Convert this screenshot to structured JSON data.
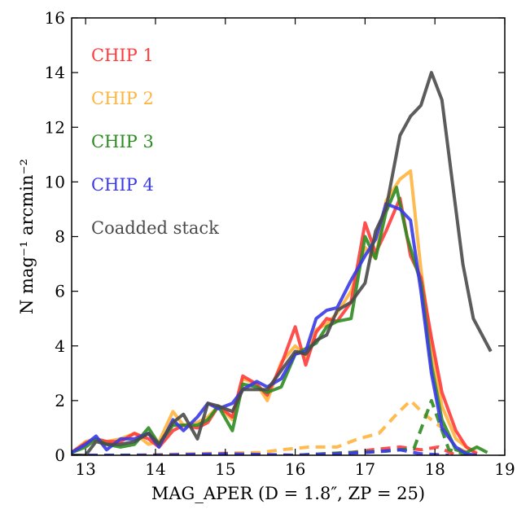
{
  "chart_data": {
    "type": "line",
    "xlabel": "MAG_APER (D = 1.8″, ZP = 25)",
    "ylabel": "N mag⁻¹ arcmin⁻²",
    "xlim": [
      12.8,
      19.0
    ],
    "ylim": [
      0,
      16
    ],
    "xticks": [
      "13",
      "14",
      "15",
      "16",
      "17",
      "18",
      "19"
    ],
    "yticks": [
      "0",
      "2",
      "4",
      "6",
      "8",
      "10",
      "12",
      "14",
      "16"
    ],
    "grid": false,
    "legend_position": "top-left",
    "series": [
      {
        "name": "CHIP 1",
        "color": "#ff3b3b",
        "style": "solid",
        "x": [
          12.8,
          13.0,
          13.15,
          13.3,
          13.5,
          13.7,
          13.9,
          14.05,
          14.25,
          14.4,
          14.6,
          14.75,
          14.9,
          15.1,
          15.25,
          15.45,
          15.6,
          15.8,
          16.0,
          16.15,
          16.3,
          16.45,
          16.6,
          16.8,
          17.0,
          17.15,
          17.3,
          17.5,
          17.65,
          17.8,
          17.95,
          18.1,
          18.3,
          18.45,
          18.6
        ],
        "y": [
          0.1,
          0.45,
          0.6,
          0.5,
          0.5,
          0.8,
          0.6,
          0.3,
          0.9,
          1.1,
          1.0,
          1.2,
          1.8,
          1.4,
          2.9,
          2.6,
          2.2,
          3.3,
          4.7,
          3.3,
          4.5,
          5.0,
          4.9,
          5.6,
          8.5,
          7.4,
          8.2,
          9.4,
          7.3,
          6.5,
          4.3,
          2.3,
          0.9,
          0.3,
          0.05
        ]
      },
      {
        "name": "CHIP 2",
        "color": "#ffb43c",
        "style": "solid",
        "x": [
          12.8,
          13.0,
          13.15,
          13.3,
          13.5,
          13.7,
          13.9,
          14.05,
          14.25,
          14.4,
          14.6,
          14.75,
          14.9,
          15.1,
          15.25,
          15.45,
          15.6,
          15.8,
          16.0,
          16.15,
          16.3,
          16.45,
          16.6,
          16.8,
          17.0,
          17.15,
          17.3,
          17.5,
          17.65,
          17.8,
          17.95,
          18.1,
          18.3,
          18.45,
          18.6
        ],
        "y": [
          0.1,
          0.5,
          0.6,
          0.5,
          0.6,
          0.8,
          0.4,
          0.5,
          1.6,
          1.1,
          1.2,
          1.4,
          1.8,
          1.3,
          2.8,
          2.6,
          2.0,
          3.4,
          4.0,
          3.6,
          4.6,
          4.8,
          5.2,
          6.0,
          7.6,
          7.2,
          9.3,
          10.1,
          10.4,
          6.8,
          4.0,
          1.8,
          0.6,
          0.3,
          0.1
        ]
      },
      {
        "name": "CHIP 3",
        "color": "#2e8b22",
        "style": "solid",
        "x": [
          12.8,
          13.0,
          13.15,
          13.3,
          13.5,
          13.7,
          13.9,
          14.05,
          14.25,
          14.4,
          14.6,
          14.75,
          14.9,
          15.1,
          15.25,
          15.45,
          15.6,
          15.8,
          16.0,
          16.15,
          16.3,
          16.45,
          16.6,
          16.8,
          17.0,
          17.15,
          17.3,
          17.45,
          17.6,
          17.8,
          17.95,
          18.1,
          18.3,
          18.45,
          18.6,
          18.75
        ],
        "y": [
          0.1,
          0.3,
          0.6,
          0.4,
          0.3,
          0.4,
          1.0,
          0.4,
          1.1,
          1.1,
          1.1,
          1.3,
          1.8,
          0.9,
          2.6,
          2.5,
          2.3,
          2.5,
          3.7,
          3.9,
          4.1,
          4.7,
          4.9,
          5.0,
          8.0,
          7.2,
          8.9,
          9.8,
          8.0,
          6.3,
          3.3,
          1.3,
          0.2,
          0.1,
          0.3,
          0.1
        ]
      },
      {
        "name": "CHIP 4",
        "color": "#3a3ae8",
        "style": "solid",
        "x": [
          12.8,
          13.0,
          13.15,
          13.3,
          13.5,
          13.7,
          13.9,
          14.05,
          14.25,
          14.4,
          14.6,
          14.75,
          14.9,
          15.1,
          15.25,
          15.45,
          15.6,
          15.8,
          16.0,
          16.15,
          16.3,
          16.45,
          16.6,
          16.8,
          17.0,
          17.15,
          17.3,
          17.5,
          17.65,
          17.8,
          17.95,
          18.1,
          18.3,
          18.45,
          18.6
        ],
        "y": [
          0.1,
          0.4,
          0.7,
          0.2,
          0.6,
          0.6,
          0.8,
          0.3,
          1.3,
          0.9,
          1.4,
          1.9,
          1.7,
          1.9,
          2.4,
          2.7,
          2.5,
          2.8,
          3.7,
          3.8,
          5.0,
          5.3,
          5.4,
          6.4,
          7.3,
          7.9,
          9.2,
          9.0,
          8.6,
          6.0,
          3.0,
          1.0,
          0.3,
          0.05,
          0.0
        ]
      },
      {
        "name": "Coadded stack",
        "color": "#4a4a4a",
        "style": "solid",
        "x": [
          12.8,
          13.0,
          13.15,
          13.3,
          13.5,
          13.7,
          13.9,
          14.05,
          14.25,
          14.4,
          14.6,
          14.75,
          14.9,
          15.1,
          15.25,
          15.45,
          15.6,
          15.8,
          16.0,
          16.15,
          16.3,
          16.45,
          16.6,
          16.8,
          17.0,
          17.15,
          17.3,
          17.5,
          17.65,
          17.8,
          17.95,
          18.1,
          18.25,
          18.4,
          18.55,
          18.8
        ],
        "y": [
          0.0,
          0.0,
          0.5,
          0.4,
          0.4,
          0.5,
          0.8,
          0.4,
          1.2,
          1.5,
          0.6,
          1.9,
          1.8,
          1.6,
          2.4,
          2.4,
          2.4,
          3.1,
          3.8,
          3.7,
          4.2,
          4.4,
          5.3,
          5.6,
          6.3,
          8.2,
          9.0,
          11.7,
          12.4,
          12.8,
          14.0,
          13.0,
          10.0,
          7.0,
          5.0,
          3.8
        ]
      }
    ],
    "dashed_series": [
      {
        "name": "",
        "color": "#ffb43c",
        "style": "dashed",
        "x": [
          12.8,
          13.5,
          14.5,
          15.5,
          15.8,
          16.2,
          16.6,
          16.9,
          17.2,
          17.45,
          17.65,
          17.85,
          18.1,
          18.3,
          18.5
        ],
        "y": [
          0.0,
          0.0,
          0.05,
          0.1,
          0.2,
          0.3,
          0.3,
          0.6,
          0.8,
          1.5,
          2.0,
          1.5,
          1.0,
          0.3,
          0.05
        ]
      },
      {
        "name": "",
        "color": "#ff3b3b",
        "style": "dashed",
        "x": [
          12.8,
          14.0,
          15.0,
          16.0,
          16.8,
          17.1,
          17.5,
          17.8,
          18.05,
          18.3
        ],
        "y": [
          0.0,
          0.0,
          0.05,
          0.0,
          0.1,
          0.2,
          0.3,
          0.2,
          0.3,
          0.0
        ]
      },
      {
        "name": "",
        "color": "#2e8b22",
        "style": "dashed",
        "x": [
          12.8,
          14.0,
          15.0,
          16.0,
          16.8,
          17.3,
          17.7,
          17.95,
          18.2,
          18.5
        ],
        "y": [
          0.0,
          0.0,
          0.0,
          0.0,
          0.1,
          0.15,
          0.25,
          2.0,
          0.2,
          0.0
        ]
      },
      {
        "name": "",
        "color": "#3a3ae8",
        "style": "dashed",
        "x": [
          12.8,
          14.0,
          15.0,
          16.0,
          16.6,
          17.0,
          17.5,
          17.8,
          18.2
        ],
        "y": [
          0.0,
          0.0,
          0.05,
          0.0,
          0.05,
          0.1,
          0.2,
          0.05,
          0.0
        ]
      }
    ]
  }
}
